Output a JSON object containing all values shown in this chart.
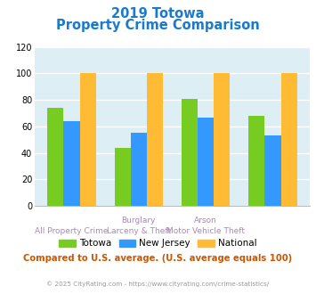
{
  "title_line1": "2019 Totowa",
  "title_line2": "Property Crime Comparison",
  "title_color": "#1a7acc",
  "series_names": [
    "Totowa",
    "New Jersey",
    "National"
  ],
  "series": {
    "Totowa": [
      74,
      44,
      81,
      68
    ],
    "New Jersey": [
      64,
      55,
      67,
      53
    ],
    "National": [
      100,
      100,
      100,
      100
    ]
  },
  "colors": {
    "Totowa": "#77cc22",
    "New Jersey": "#3399ff",
    "National": "#ffbb33"
  },
  "ylim": [
    0,
    120
  ],
  "yticks": [
    0,
    20,
    40,
    60,
    80,
    100,
    120
  ],
  "background_color": "#ddeef5",
  "cat_top": [
    "",
    "Burglary",
    "Arson",
    ""
  ],
  "cat_bot": [
    "All Property Crime",
    "Larceny & Theft",
    "Motor Vehicle Theft",
    ""
  ],
  "label_color": "#aa88bb",
  "footer_text": "Compared to U.S. average. (U.S. average equals 100)",
  "footer_color": "#cc5500",
  "copyright_text": "© 2025 CityRating.com - https://www.cityrating.com/crime-statistics/",
  "copyright_color": "#999999"
}
